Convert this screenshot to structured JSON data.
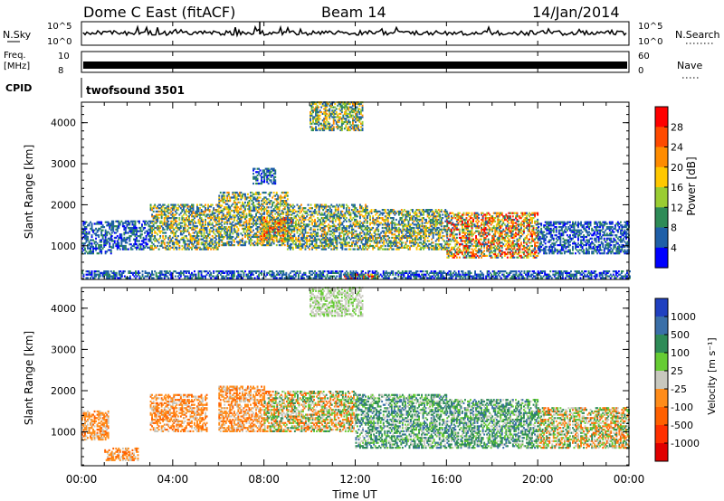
{
  "header": {
    "station": "Dome C East (fitACF)",
    "beam": "Beam 14",
    "date": "14/Jan/2014"
  },
  "small_panels": {
    "nsky_label": "N.Sky",
    "nsearch_label": "N.Search",
    "freq_label_top": "Freq.",
    "freq_label_bottom": "[MHz]",
    "nave_label": "Nave",
    "cpid_label": "CPID",
    "cpid_value": "twofsound 3501",
    "nsky_tick_top": "10^5",
    "nsky_tick_bottom": "10^0",
    "freq_tick_top": "10",
    "freq_tick_bottom": "8",
    "nave_tick_top": "60",
    "nave_tick_bottom": "0"
  },
  "x_axis": {
    "label": "Time UT",
    "ticks": [
      "00:00",
      "04:00",
      "08:00",
      "12:00",
      "16:00",
      "20:00",
      "00:00"
    ]
  },
  "power_colorbar": {
    "label": "Power [dB]",
    "ticks": [
      "28",
      "24",
      "20",
      "16",
      "12",
      "8",
      "4"
    ],
    "colors": [
      "#ff0000",
      "#ff4a00",
      "#ff8c00",
      "#ffc800",
      "#9acd32",
      "#2e8b57",
      "#1f5fa8",
      "#0000ff"
    ]
  },
  "velocity_colorbar": {
    "label": "Velocity [m s⁻¹]",
    "ticks": [
      "1000",
      "500",
      "100",
      "25",
      "-25",
      "-100",
      "-500",
      "-1000"
    ],
    "colors": [
      "#2040c0",
      "#3a6fa8",
      "#2e8b57",
      "#66cc33",
      "#c8c8be",
      "#ff8c1a",
      "#ff6000",
      "#ff3000",
      "#e00000"
    ]
  },
  "chart_data": [
    {
      "type": "heatmap",
      "title": "",
      "xlabel": "Time UT",
      "ylabel": "Slant Range [km]",
      "xlim": [
        0,
        24
      ],
      "ylim": [
        180,
        4500
      ],
      "yticks": [
        1000,
        2000,
        3000,
        4000
      ],
      "colorbar_label": "Power [dB]",
      "colorbar_ticks": [
        28,
        24,
        20,
        16,
        12,
        8,
        4
      ],
      "regions": [
        {
          "t": [
            0.0,
            1.3
          ],
          "r": [
            800,
            1600
          ],
          "level": "low"
        },
        {
          "t": [
            1.3,
            3.0
          ],
          "r": [
            900,
            1600
          ],
          "level": "low"
        },
        {
          "t": [
            3.0,
            6.0
          ],
          "r": [
            900,
            2000
          ],
          "level": "mid"
        },
        {
          "t": [
            6.0,
            9.0
          ],
          "r": [
            1000,
            2300
          ],
          "level": "mid"
        },
        {
          "t": [
            7.8,
            9.2
          ],
          "r": [
            1100,
            1700
          ],
          "level": "high"
        },
        {
          "t": [
            9.0,
            12.5
          ],
          "r": [
            900,
            2000
          ],
          "level": "mid"
        },
        {
          "t": [
            12.5,
            16.0
          ],
          "r": [
            900,
            1900
          ],
          "level": "mid"
        },
        {
          "t": [
            16.0,
            20.0
          ],
          "r": [
            700,
            1800
          ],
          "level": "high"
        },
        {
          "t": [
            20.0,
            24.0
          ],
          "r": [
            800,
            1600
          ],
          "level": "low"
        },
        {
          "t": [
            10.0,
            12.3
          ],
          "r": [
            3800,
            4500
          ],
          "level": "mid"
        },
        {
          "t": [
            7.5,
            8.5
          ],
          "r": [
            2500,
            2900
          ],
          "level": "low"
        },
        {
          "t": [
            0.0,
            24.0
          ],
          "r": [
            200,
            400
          ],
          "level": "low"
        },
        {
          "t": [
            11.5,
            13.0
          ],
          "r": [
            200,
            300
          ],
          "level": "high"
        }
      ]
    },
    {
      "type": "heatmap",
      "title": "",
      "xlabel": "Time UT",
      "ylabel": "Slant Range [km]",
      "xlim": [
        0,
        24
      ],
      "ylim": [
        180,
        4500
      ],
      "yticks": [
        1000,
        2000,
        3000,
        4000
      ],
      "colorbar_label": "Velocity [m s⁻¹]",
      "colorbar_ticks": [
        1000,
        500,
        100,
        25,
        -25,
        -100,
        -500,
        -1000
      ],
      "regions": [
        {
          "t": [
            0.0,
            1.2
          ],
          "r": [
            800,
            1500
          ],
          "level": "neg"
        },
        {
          "t": [
            1.0,
            2.5
          ],
          "r": [
            300,
            600
          ],
          "level": "neg"
        },
        {
          "t": [
            3.0,
            5.5
          ],
          "r": [
            1000,
            1900
          ],
          "level": "neg"
        },
        {
          "t": [
            6.0,
            8.0
          ],
          "r": [
            1000,
            2100
          ],
          "level": "neg"
        },
        {
          "t": [
            8.0,
            12.0
          ],
          "r": [
            1000,
            2000
          ],
          "level": "mixed"
        },
        {
          "t": [
            12.0,
            16.0
          ],
          "r": [
            600,
            1900
          ],
          "level": "pos"
        },
        {
          "t": [
            16.0,
            20.0
          ],
          "r": [
            600,
            1800
          ],
          "level": "pos"
        },
        {
          "t": [
            20.0,
            24.0
          ],
          "r": [
            600,
            1600
          ],
          "level": "mixed"
        },
        {
          "t": [
            10.0,
            12.3
          ],
          "r": [
            3800,
            4500
          ],
          "level": "zero"
        }
      ]
    }
  ]
}
